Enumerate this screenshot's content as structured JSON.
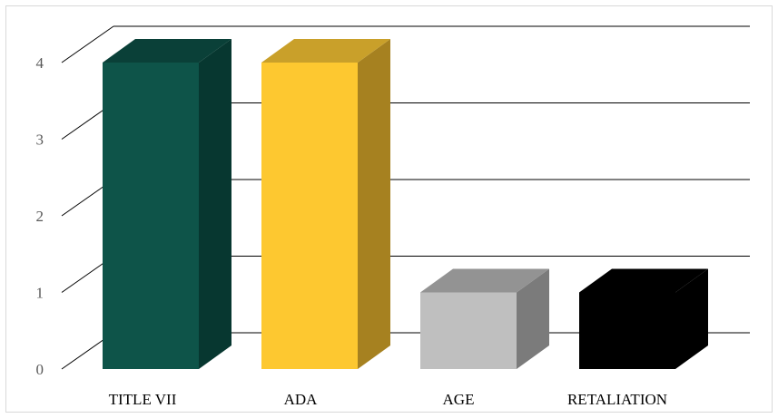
{
  "chart_data": {
    "type": "bar",
    "style": "3d-column",
    "categories": [
      "TITLE VII",
      "ADA",
      "AGE",
      "RETALIATION"
    ],
    "values": [
      4,
      4,
      1,
      1
    ],
    "ylim": [
      0,
      4
    ],
    "yticks": [
      "0",
      "1",
      "2",
      "3",
      "4"
    ],
    "grid": true,
    "legend": "none",
    "colors": {
      "bars": [
        "#0e5449",
        "#fdc830",
        "#bfbfbf",
        "#000000"
      ],
      "sides": [
        "#073730",
        "#a68120",
        "#7b7b7b",
        "#000000"
      ],
      "tops": [
        "#0a4038",
        "#c9a02a",
        "#939393",
        "#000000"
      ],
      "grid": "#000000"
    }
  }
}
